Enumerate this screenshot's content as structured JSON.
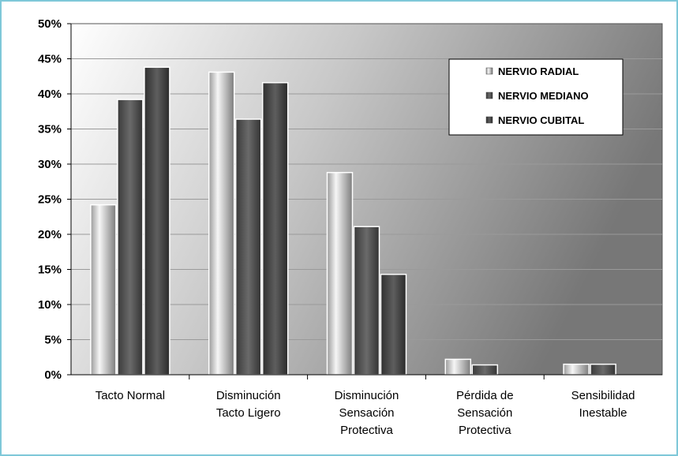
{
  "chart_data": {
    "type": "bar",
    "categories": [
      [
        "Tacto Normal"
      ],
      [
        "Disminución",
        "Tacto Ligero"
      ],
      [
        "Disminución",
        "Sensación",
        "Protectiva"
      ],
      [
        "Pérdida de",
        "Sensación",
        "Protectiva"
      ],
      [
        "Sensibilidad",
        "Inestable"
      ]
    ],
    "series": [
      {
        "name": "NERVIO RADIAL",
        "values": [
          24.2,
          43.1,
          28.8,
          2.2,
          1.5
        ]
      },
      {
        "name": "NERVIO MEDIANO",
        "values": [
          39.2,
          36.4,
          21.1,
          1.4,
          1.5
        ]
      },
      {
        "name": "NERVIO CUBITAL",
        "values": [
          43.8,
          41.6,
          14.3,
          0,
          0
        ]
      }
    ],
    "ylim": [
      0,
      50
    ],
    "yticks": [
      0,
      5,
      10,
      15,
      20,
      25,
      30,
      35,
      40,
      45,
      50
    ],
    "ytick_suffix": "%",
    "grid": true,
    "legend_position": "top-right",
    "colors": {
      "plot_bg_light": "#ffffff",
      "plot_bg_dark": "#7a7a7a",
      "radial_light": "#f4f4f4",
      "radial_dark": "#8f8f8f",
      "mediano": "#555555",
      "cubital": "#4a4a4a",
      "frame": "#7ec8d8"
    },
    "title": "",
    "xlabel": "",
    "ylabel": ""
  }
}
